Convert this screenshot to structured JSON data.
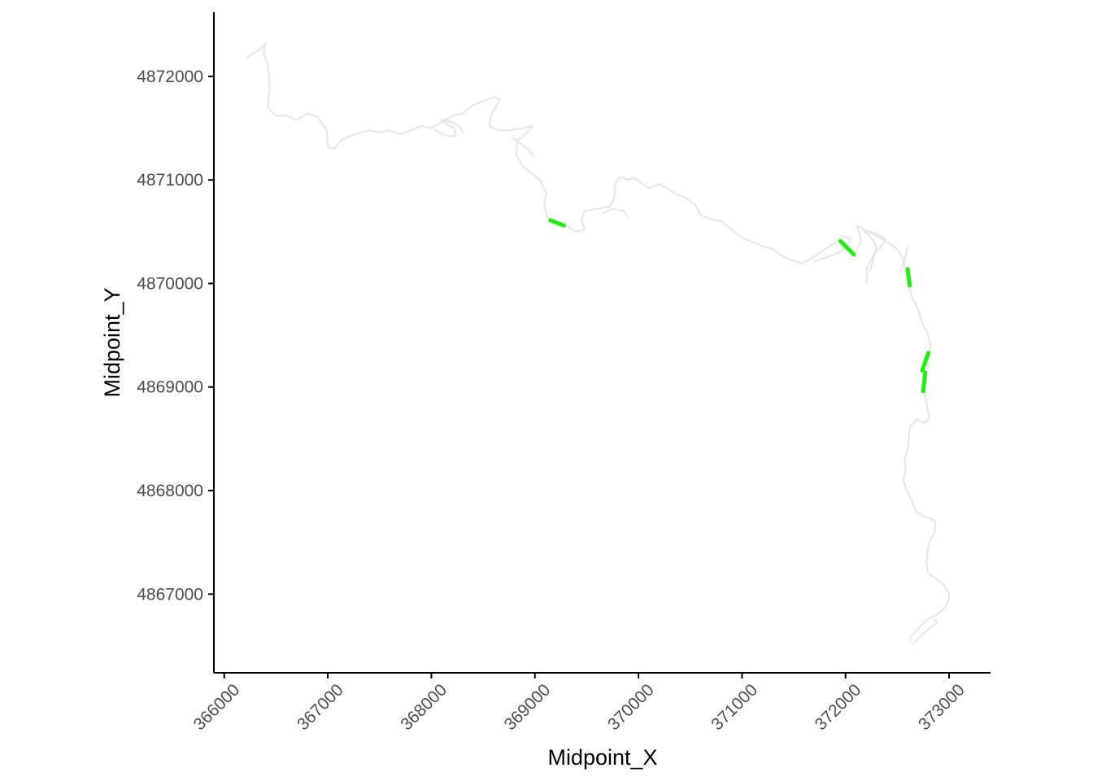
{
  "chart_data": {
    "type": "line",
    "xlabel": "Midpoint_X",
    "ylabel": "Midpoint_Y",
    "xlim": [
      365900,
      373400
    ],
    "ylim": [
      4866240,
      4872620
    ],
    "xticks": [
      366000,
      367000,
      368000,
      369000,
      370000,
      371000,
      372000,
      373000
    ],
    "xtick_labels": [
      "366000",
      "367000",
      "368000",
      "369000",
      "370000",
      "371000",
      "372000",
      "373000"
    ],
    "yticks": [
      4867000,
      4868000,
      4869000,
      4870000,
      4871000,
      4872000
    ],
    "ytick_labels": [
      "4867000",
      "4868000",
      "4869000",
      "4870000",
      "4871000",
      "4872000"
    ],
    "grid": false,
    "legend": "none",
    "colors": {
      "river": "#e5e5e5",
      "highlight": "#22ee11",
      "axis": "#000000",
      "tick_text": "#4d4d4d"
    },
    "series": [
      {
        "role": "river_outline",
        "points": [
          [
            366220,
            4872180
          ],
          [
            366290,
            4872230
          ],
          [
            366360,
            4872270
          ],
          [
            366400,
            4872320
          ],
          [
            366380,
            4872220
          ],
          [
            366420,
            4872120
          ],
          [
            366440,
            4871900
          ],
          [
            366420,
            4871700
          ],
          [
            366500,
            4871620
          ],
          [
            366600,
            4871620
          ],
          [
            366700,
            4871580
          ],
          [
            366800,
            4871640
          ],
          [
            366900,
            4871610
          ],
          [
            366990,
            4871480
          ],
          [
            367000,
            4871320
          ],
          [
            367060,
            4871300
          ],
          [
            367130,
            4871380
          ],
          [
            367250,
            4871440
          ],
          [
            367400,
            4871480
          ],
          [
            367500,
            4871460
          ],
          [
            367600,
            4871480
          ],
          [
            367700,
            4871440
          ],
          [
            367800,
            4871480
          ],
          [
            367900,
            4871520
          ],
          [
            368000,
            4871500
          ],
          [
            368100,
            4871560
          ],
          [
            368200,
            4871620
          ],
          [
            368300,
            4871640
          ],
          [
            368400,
            4871720
          ],
          [
            368500,
            4871760
          ],
          [
            368600,
            4871800
          ],
          [
            368660,
            4871780
          ],
          [
            368620,
            4871700
          ],
          [
            368570,
            4871620
          ],
          [
            368560,
            4871520
          ],
          [
            368640,
            4871480
          ],
          [
            368760,
            4871480
          ],
          [
            368880,
            4871500
          ],
          [
            368980,
            4871520
          ],
          [
            368920,
            4871450
          ],
          [
            368830,
            4871380
          ],
          [
            368820,
            4871250
          ],
          [
            368870,
            4871150
          ],
          [
            368970,
            4871060
          ],
          [
            369050,
            4871000
          ],
          [
            369110,
            4870880
          ],
          [
            369090,
            4870750
          ],
          [
            369120,
            4870640
          ],
          [
            369200,
            4870610
          ],
          [
            369300,
            4870560
          ],
          [
            369400,
            4870500
          ],
          [
            369480,
            4870520
          ],
          [
            369450,
            4870620
          ],
          [
            369480,
            4870700
          ],
          [
            369600,
            4870720
          ],
          [
            369720,
            4870740
          ],
          [
            369770,
            4870830
          ],
          [
            369770,
            4870950
          ],
          [
            369820,
            4871030
          ],
          [
            369900,
            4871000
          ],
          [
            369960,
            4871020
          ],
          [
            370040,
            4870960
          ],
          [
            370100,
            4870920
          ],
          [
            370200,
            4870960
          ],
          [
            370280,
            4870920
          ],
          [
            370350,
            4870870
          ],
          [
            370450,
            4870830
          ],
          [
            370550,
            4870760
          ],
          [
            370600,
            4870660
          ],
          [
            370700,
            4870620
          ],
          [
            370800,
            4870600
          ],
          [
            370900,
            4870520
          ],
          [
            371000,
            4870440
          ],
          [
            371100,
            4870400
          ],
          [
            371200,
            4870360
          ],
          [
            371300,
            4870330
          ],
          [
            371400,
            4870260
          ],
          [
            371500,
            4870220
          ],
          [
            371580,
            4870190
          ],
          [
            371700,
            4870260
          ],
          [
            371800,
            4870330
          ],
          [
            371880,
            4870380
          ],
          [
            371930,
            4870410
          ],
          [
            372000,
            4870350
          ],
          [
            372070,
            4870290
          ],
          [
            372110,
            4870310
          ],
          [
            372150,
            4870420
          ],
          [
            372110,
            4870560
          ],
          [
            372180,
            4870520
          ],
          [
            372300,
            4870460
          ],
          [
            372420,
            4870390
          ],
          [
            372500,
            4870330
          ],
          [
            372560,
            4870240
          ],
          [
            372580,
            4870120
          ],
          [
            372600,
            4870000
          ],
          [
            372650,
            4869850
          ],
          [
            372700,
            4869750
          ],
          [
            372740,
            4869620
          ],
          [
            372790,
            4869520
          ],
          [
            372820,
            4869400
          ],
          [
            372800,
            4869250
          ],
          [
            372780,
            4869100
          ],
          [
            372760,
            4868970
          ],
          [
            372780,
            4868840
          ],
          [
            372810,
            4868700
          ],
          [
            372760,
            4868650
          ],
          [
            372690,
            4868690
          ],
          [
            372620,
            4868610
          ],
          [
            372610,
            4868500
          ],
          [
            372600,
            4868400
          ],
          [
            372570,
            4868300
          ],
          [
            372580,
            4868200
          ],
          [
            372560,
            4868100
          ],
          [
            372590,
            4868000
          ],
          [
            372640,
            4867900
          ],
          [
            372680,
            4867800
          ],
          [
            372750,
            4867750
          ],
          [
            372820,
            4867730
          ],
          [
            372870,
            4867700
          ],
          [
            372860,
            4867600
          ],
          [
            372810,
            4867500
          ],
          [
            372790,
            4867400
          ],
          [
            372780,
            4867300
          ],
          [
            372800,
            4867200
          ],
          [
            372870,
            4867150
          ],
          [
            372950,
            4867090
          ],
          [
            373000,
            4867000
          ],
          [
            372990,
            4866920
          ],
          [
            372940,
            4866850
          ],
          [
            372880,
            4866800
          ],
          [
            372800,
            4866760
          ],
          [
            372740,
            4866710
          ],
          [
            372700,
            4866660
          ],
          [
            372640,
            4866600
          ],
          [
            372620,
            4866540
          ]
        ]
      },
      {
        "role": "river_outline",
        "points": [
          [
            368040,
            4871480
          ],
          [
            368110,
            4871440
          ],
          [
            368180,
            4871420
          ],
          [
            368240,
            4871430
          ],
          [
            368220,
            4871500
          ],
          [
            368150,
            4871540
          ],
          [
            368100,
            4871580
          ],
          [
            368200,
            4871560
          ],
          [
            368270,
            4871520
          ],
          [
            368300,
            4871460
          ]
        ]
      },
      {
        "role": "river_outline",
        "points": [
          [
            368780,
            4871410
          ],
          [
            368860,
            4871350
          ],
          [
            368930,
            4871300
          ],
          [
            368990,
            4871230
          ]
        ]
      },
      {
        "role": "river_outline",
        "points": [
          [
            369650,
            4870680
          ],
          [
            369750,
            4870720
          ],
          [
            369860,
            4870700
          ],
          [
            369900,
            4870640
          ]
        ]
      },
      {
        "role": "river_outline",
        "points": [
          [
            371700,
            4870210
          ],
          [
            371830,
            4870260
          ],
          [
            371940,
            4870300
          ],
          [
            372020,
            4870360
          ],
          [
            372050,
            4870430
          ],
          [
            371960,
            4870460
          ]
        ]
      },
      {
        "role": "river_outline",
        "points": [
          [
            372100,
            4870560
          ],
          [
            372200,
            4870510
          ],
          [
            372310,
            4870480
          ],
          [
            372390,
            4870420
          ],
          [
            372330,
            4870340
          ],
          [
            372260,
            4870260
          ],
          [
            372210,
            4870150
          ],
          [
            372200,
            4870000
          ]
        ]
      },
      {
        "role": "river_outline",
        "points": [
          [
            372160,
            4870530
          ],
          [
            372250,
            4870440
          ],
          [
            372300,
            4870360
          ],
          [
            372270,
            4870250
          ],
          [
            372240,
            4870130
          ]
        ]
      },
      {
        "role": "river_outline",
        "points": [
          [
            372540,
            4870150
          ],
          [
            372580,
            4870260
          ],
          [
            372600,
            4870360
          ]
        ]
      },
      {
        "role": "river_outline",
        "points": [
          [
            372640,
            4866510
          ],
          [
            372720,
            4866590
          ],
          [
            372800,
            4866660
          ],
          [
            372880,
            4866720
          ],
          [
            372860,
            4866760
          ]
        ]
      },
      {
        "role": "highlighted_segment",
        "points": [
          [
            369150,
            4870610
          ],
          [
            369280,
            4870560
          ]
        ]
      },
      {
        "role": "highlighted_segment",
        "points": [
          [
            371950,
            4870410
          ],
          [
            372080,
            4870280
          ]
        ]
      },
      {
        "role": "highlighted_segment",
        "points": [
          [
            372600,
            4870140
          ],
          [
            372620,
            4869980
          ]
        ]
      },
      {
        "role": "highlighted_segment",
        "points": [
          [
            372800,
            4869330
          ],
          [
            372740,
            4869160
          ]
        ]
      },
      {
        "role": "highlighted_segment",
        "points": [
          [
            372770,
            4869140
          ],
          [
            372750,
            4868960
          ]
        ]
      }
    ]
  }
}
